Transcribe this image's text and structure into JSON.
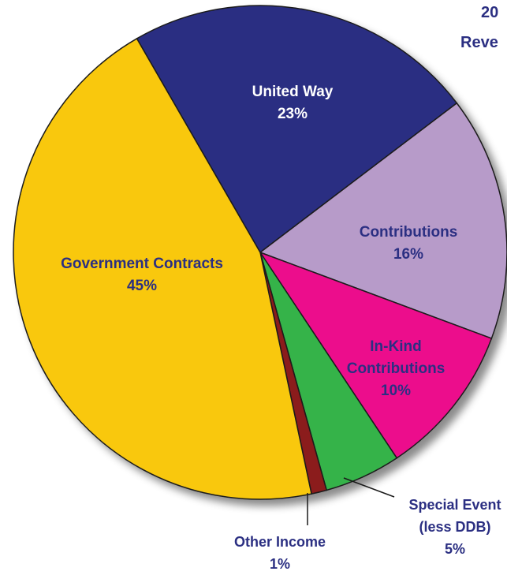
{
  "chart_data": {
    "type": "pie",
    "title_lines": [
      "20",
      "Reve"
    ],
    "start_angle_deg": 240,
    "direction": "clockwise",
    "slices": [
      {
        "label_lines": [
          "United Way",
          "23%"
        ],
        "value": 23,
        "color": "#2b2f82",
        "text_color": "#ffffff"
      },
      {
        "label_lines": [
          "Contributions",
          "16%"
        ],
        "value": 16,
        "color": "#b79bc9",
        "text_color": "#2b2f82"
      },
      {
        "label_lines": [
          "In-Kind",
          "Contributions",
          "10%"
        ],
        "value": 10,
        "color": "#ec0d8c",
        "text_color": "#2b2f82"
      },
      {
        "label_lines": [
          "Special Event",
          "(less DDB)",
          "5%"
        ],
        "value": 5,
        "color": "#35b34a",
        "text_color": "#2b2f82"
      },
      {
        "label_lines": [
          "Other Income",
          "1%"
        ],
        "value": 1,
        "color": "#8b1a1a",
        "text_color": "#2b2f82"
      },
      {
        "label_lines": [
          "Government Contracts",
          "45%"
        ],
        "value": 45,
        "color": "#f9c80e",
        "text_color": "#2b2f82"
      }
    ]
  }
}
